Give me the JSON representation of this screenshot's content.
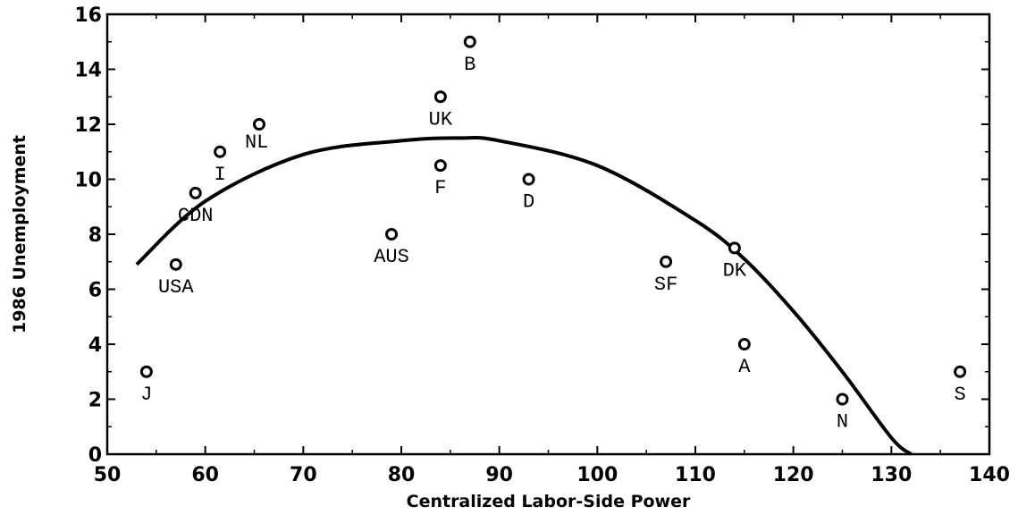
{
  "chart_data": {
    "type": "scatter",
    "title": "",
    "xlabel": "Centralized Labor-Side Power",
    "ylabel": "1986 Unemployment",
    "xlim": [
      50,
      140
    ],
    "ylim": [
      0,
      16
    ],
    "x_ticks": [
      50,
      60,
      70,
      80,
      90,
      100,
      110,
      120,
      130,
      140
    ],
    "y_ticks": [
      0,
      2,
      4,
      6,
      8,
      10,
      12,
      14,
      16
    ],
    "grid": false,
    "legend": "none",
    "points": [
      {
        "label": "J",
        "x": 54,
        "y": 3.0,
        "label_pos": "below"
      },
      {
        "label": "USA",
        "x": 57,
        "y": 6.9,
        "label_pos": "below"
      },
      {
        "label": "CDN",
        "x": 59,
        "y": 9.5,
        "label_pos": "below"
      },
      {
        "label": "I",
        "x": 61.5,
        "y": 11.0,
        "label_pos": "below"
      },
      {
        "label": "NL",
        "x": 65.5,
        "y": 12.0,
        "label_pos": "below-right"
      },
      {
        "label": "AUS",
        "x": 79,
        "y": 8.0,
        "label_pos": "below"
      },
      {
        "label": "UK",
        "x": 84,
        "y": 13.0,
        "label_pos": "below"
      },
      {
        "label": "F",
        "x": 84,
        "y": 10.5,
        "label_pos": "below"
      },
      {
        "label": "B",
        "x": 87,
        "y": 15.0,
        "label_pos": "below"
      },
      {
        "label": "D",
        "x": 93,
        "y": 10.0,
        "label_pos": "below"
      },
      {
        "label": "SF",
        "x": 107,
        "y": 7.0,
        "label_pos": "below"
      },
      {
        "label": "DK",
        "x": 114,
        "y": 7.5,
        "label_pos": "below"
      },
      {
        "label": "A",
        "x": 115,
        "y": 4.0,
        "label_pos": "below"
      },
      {
        "label": "N",
        "x": 125,
        "y": 2.0,
        "label_pos": "below"
      },
      {
        "label": "S",
        "x": 137,
        "y": 3.0,
        "label_pos": "below"
      }
    ],
    "fit_curve": {
      "type": "quadratic",
      "points": [
        [
          53,
          6.9
        ],
        [
          60,
          9.2
        ],
        [
          70,
          10.9
        ],
        [
          80,
          11.4
        ],
        [
          86,
          11.5
        ],
        [
          90,
          11.4
        ],
        [
          100,
          10.5
        ],
        [
          110,
          8.5
        ],
        [
          115,
          7.1
        ],
        [
          120,
          5.2
        ],
        [
          125,
          3.0
        ],
        [
          130,
          0.6
        ],
        [
          132,
          0.0
        ]
      ]
    },
    "colors": {
      "marks": "#000000",
      "background": "#ffffff"
    }
  }
}
